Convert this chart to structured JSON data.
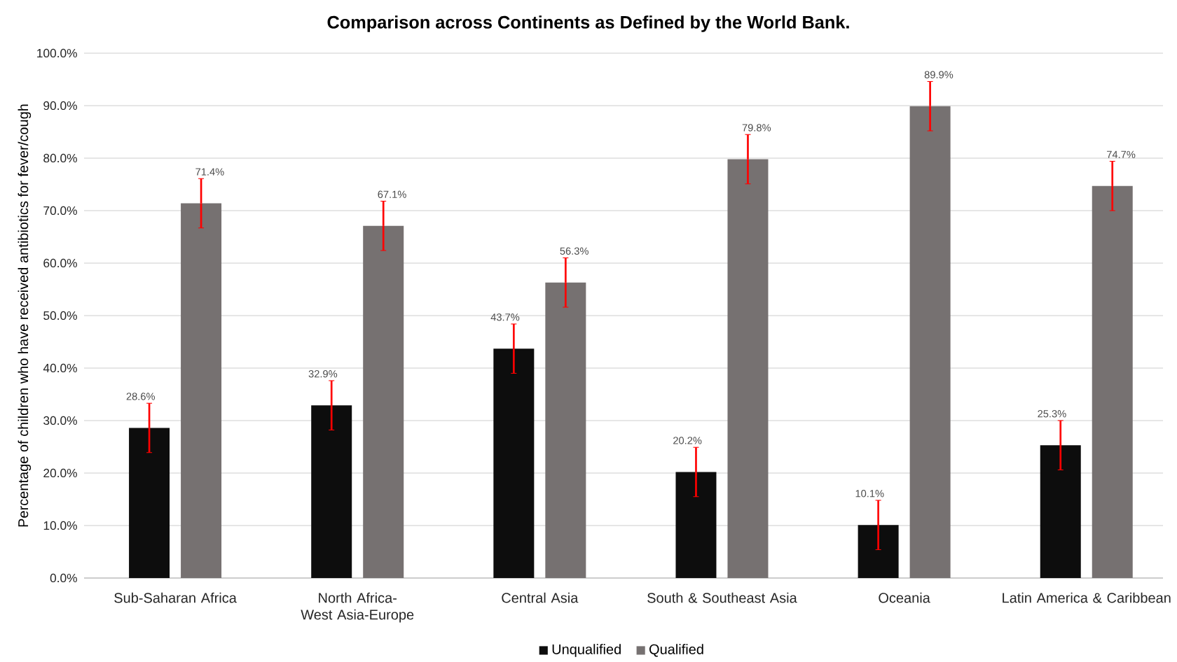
{
  "chart_data": {
    "type": "bar",
    "title": "Comparison across Continents as Defined by the World Bank.",
    "ylabel": "Percentage of children who have received antibiotics for fever/cough",
    "categories": [
      "Sub-Saharan Africa",
      "North Africa-West Asia-Europe",
      "Central Asia",
      "South & Southeast Asia",
      "Oceania",
      "Latin America & Caribbean"
    ],
    "series": [
      {
        "name": "Unqualified",
        "color": "#0d0d0d",
        "values": [
          28.6,
          32.9,
          43.7,
          20.2,
          10.1,
          25.3
        ],
        "errors": [
          4.7,
          4.7,
          4.7,
          4.7,
          4.7,
          4.7
        ],
        "value_labels": [
          "28.6%",
          "32.9%",
          "43.7%",
          "20.2%",
          "10.1%",
          "25.3%"
        ]
      },
      {
        "name": "Qualified",
        "color": "#767171",
        "values": [
          71.4,
          67.1,
          56.3,
          79.8,
          89.9,
          74.7
        ],
        "errors": [
          4.7,
          4.7,
          4.7,
          4.7,
          4.7,
          4.7
        ],
        "value_labels": [
          "71.4%",
          "67.1%",
          "56.3%",
          "79.8%",
          "89.9%",
          "74.7%"
        ]
      }
    ],
    "ylim": [
      0,
      100
    ],
    "yticks": [
      {
        "value": 0,
        "label": "0.0%"
      },
      {
        "value": 10,
        "label": "10.0%"
      },
      {
        "value": 20,
        "label": "20.0%"
      },
      {
        "value": 30,
        "label": "30.0%"
      },
      {
        "value": 40,
        "label": "40.0%"
      },
      {
        "value": 50,
        "label": "50.0%"
      },
      {
        "value": 60,
        "label": "60.0%"
      },
      {
        "value": 70,
        "label": "70.0%"
      },
      {
        "value": 80,
        "label": "80.0%"
      },
      {
        "value": 90,
        "label": "90.0%"
      },
      {
        "value": 100,
        "label": "100.0%"
      }
    ],
    "grid": "y",
    "legend": "bottom"
  }
}
